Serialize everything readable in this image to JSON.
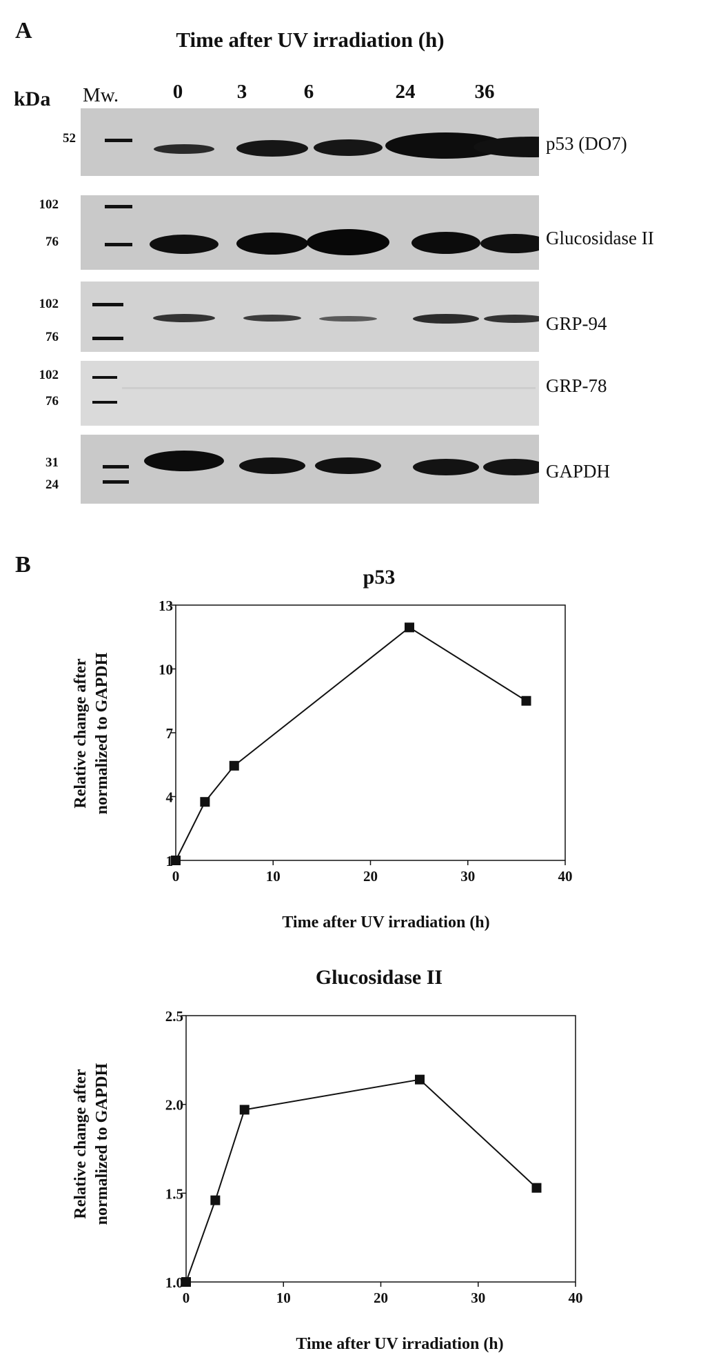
{
  "panelA": {
    "letter": "A",
    "title": "Time after UV irradiation (h)",
    "unit_label": "kDa",
    "marker_label": "Mw.",
    "lanes": [
      "0",
      "3",
      "6",
      "24",
      "36"
    ],
    "blots": [
      {
        "protein": "p53 (DO7)",
        "markers": [
          "52"
        ]
      },
      {
        "protein": "Glucosidase II",
        "markers": [
          "102",
          "76"
        ]
      },
      {
        "protein": "GRP-94",
        "markers": [
          "102",
          "76"
        ]
      },
      {
        "protein": "GRP-78",
        "markers": [
          "102",
          "76"
        ]
      },
      {
        "protein": "GAPDH",
        "markers": [
          "31",
          "24"
        ]
      }
    ]
  },
  "panelB": {
    "letter": "B"
  },
  "chart_data": [
    {
      "type": "line",
      "title": "p53",
      "xlabel": "Time after UV irradiation (h)",
      "ylabel_line1": "Relative change after",
      "ylabel_line2": "normalized to GAPDH",
      "x": [
        0,
        3,
        6,
        24,
        36
      ],
      "values": [
        1.0,
        3.75,
        5.45,
        11.95,
        8.5
      ],
      "xlim": [
        0,
        40
      ],
      "ylim": [
        1,
        13
      ],
      "xticks": [
        "0",
        "10",
        "20",
        "30",
        "40"
      ],
      "yticks": [
        "1",
        "4",
        "7",
        "10",
        "13"
      ],
      "marker": "square",
      "grid": false
    },
    {
      "type": "line",
      "title": "Glucosidase II",
      "xlabel": "Time after UV irradiation (h)",
      "ylabel_line1": "Relative change after",
      "ylabel_line2": "normalized to GAPDH",
      "x": [
        0,
        3,
        6,
        24,
        36
      ],
      "values": [
        1.0,
        1.46,
        1.97,
        2.14,
        1.53
      ],
      "xlim": [
        0,
        40
      ],
      "ylim": [
        1.0,
        2.5
      ],
      "xticks": [
        "0",
        "10",
        "20",
        "30",
        "40"
      ],
      "yticks": [
        "1.0",
        "1.5",
        "2.0",
        "2.5"
      ],
      "marker": "square",
      "grid": false
    }
  ]
}
